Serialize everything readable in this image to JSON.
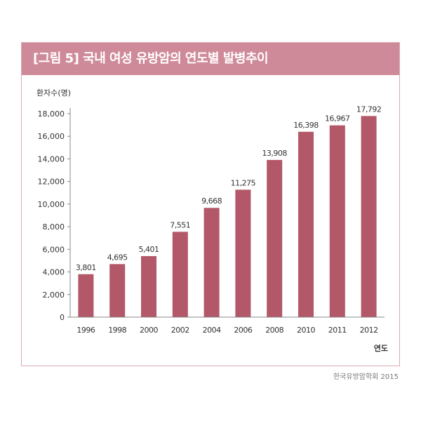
{
  "page": {
    "title": "[그림 5] 국내 여성 유방암의 연도별 발병추이",
    "source": "한국유방암학회 2015"
  },
  "colors": {
    "bar": "#b25868",
    "title_bg": "#cf8a99",
    "frame": "#d9a8b3"
  },
  "chart_data": {
    "type": "bar",
    "ylabel": "환자수(명)",
    "xlabel": "연도",
    "categories": [
      "1996",
      "1998",
      "2000",
      "2002",
      "2004",
      "2006",
      "2008",
      "2010",
      "2011",
      "2012"
    ],
    "values": [
      3801,
      4695,
      5401,
      7551,
      9668,
      11275,
      13908,
      16398,
      16967,
      17792
    ],
    "value_labels": [
      "3,801",
      "4,695",
      "5,401",
      "7,551",
      "9,668",
      "11,275",
      "13,908",
      "16,398",
      "16,967",
      "17,792"
    ],
    "yticks": [
      0,
      2000,
      4000,
      6000,
      8000,
      10000,
      12000,
      14000,
      16000,
      18000
    ],
    "ytick_labels": [
      "0",
      "2,000",
      "4,000",
      "6,000",
      "8,000",
      "10,000",
      "12,000",
      "14,000",
      "16,000",
      "18,000"
    ],
    "ylim": [
      0,
      18000
    ],
    "grid": false,
    "legend": "none"
  }
}
